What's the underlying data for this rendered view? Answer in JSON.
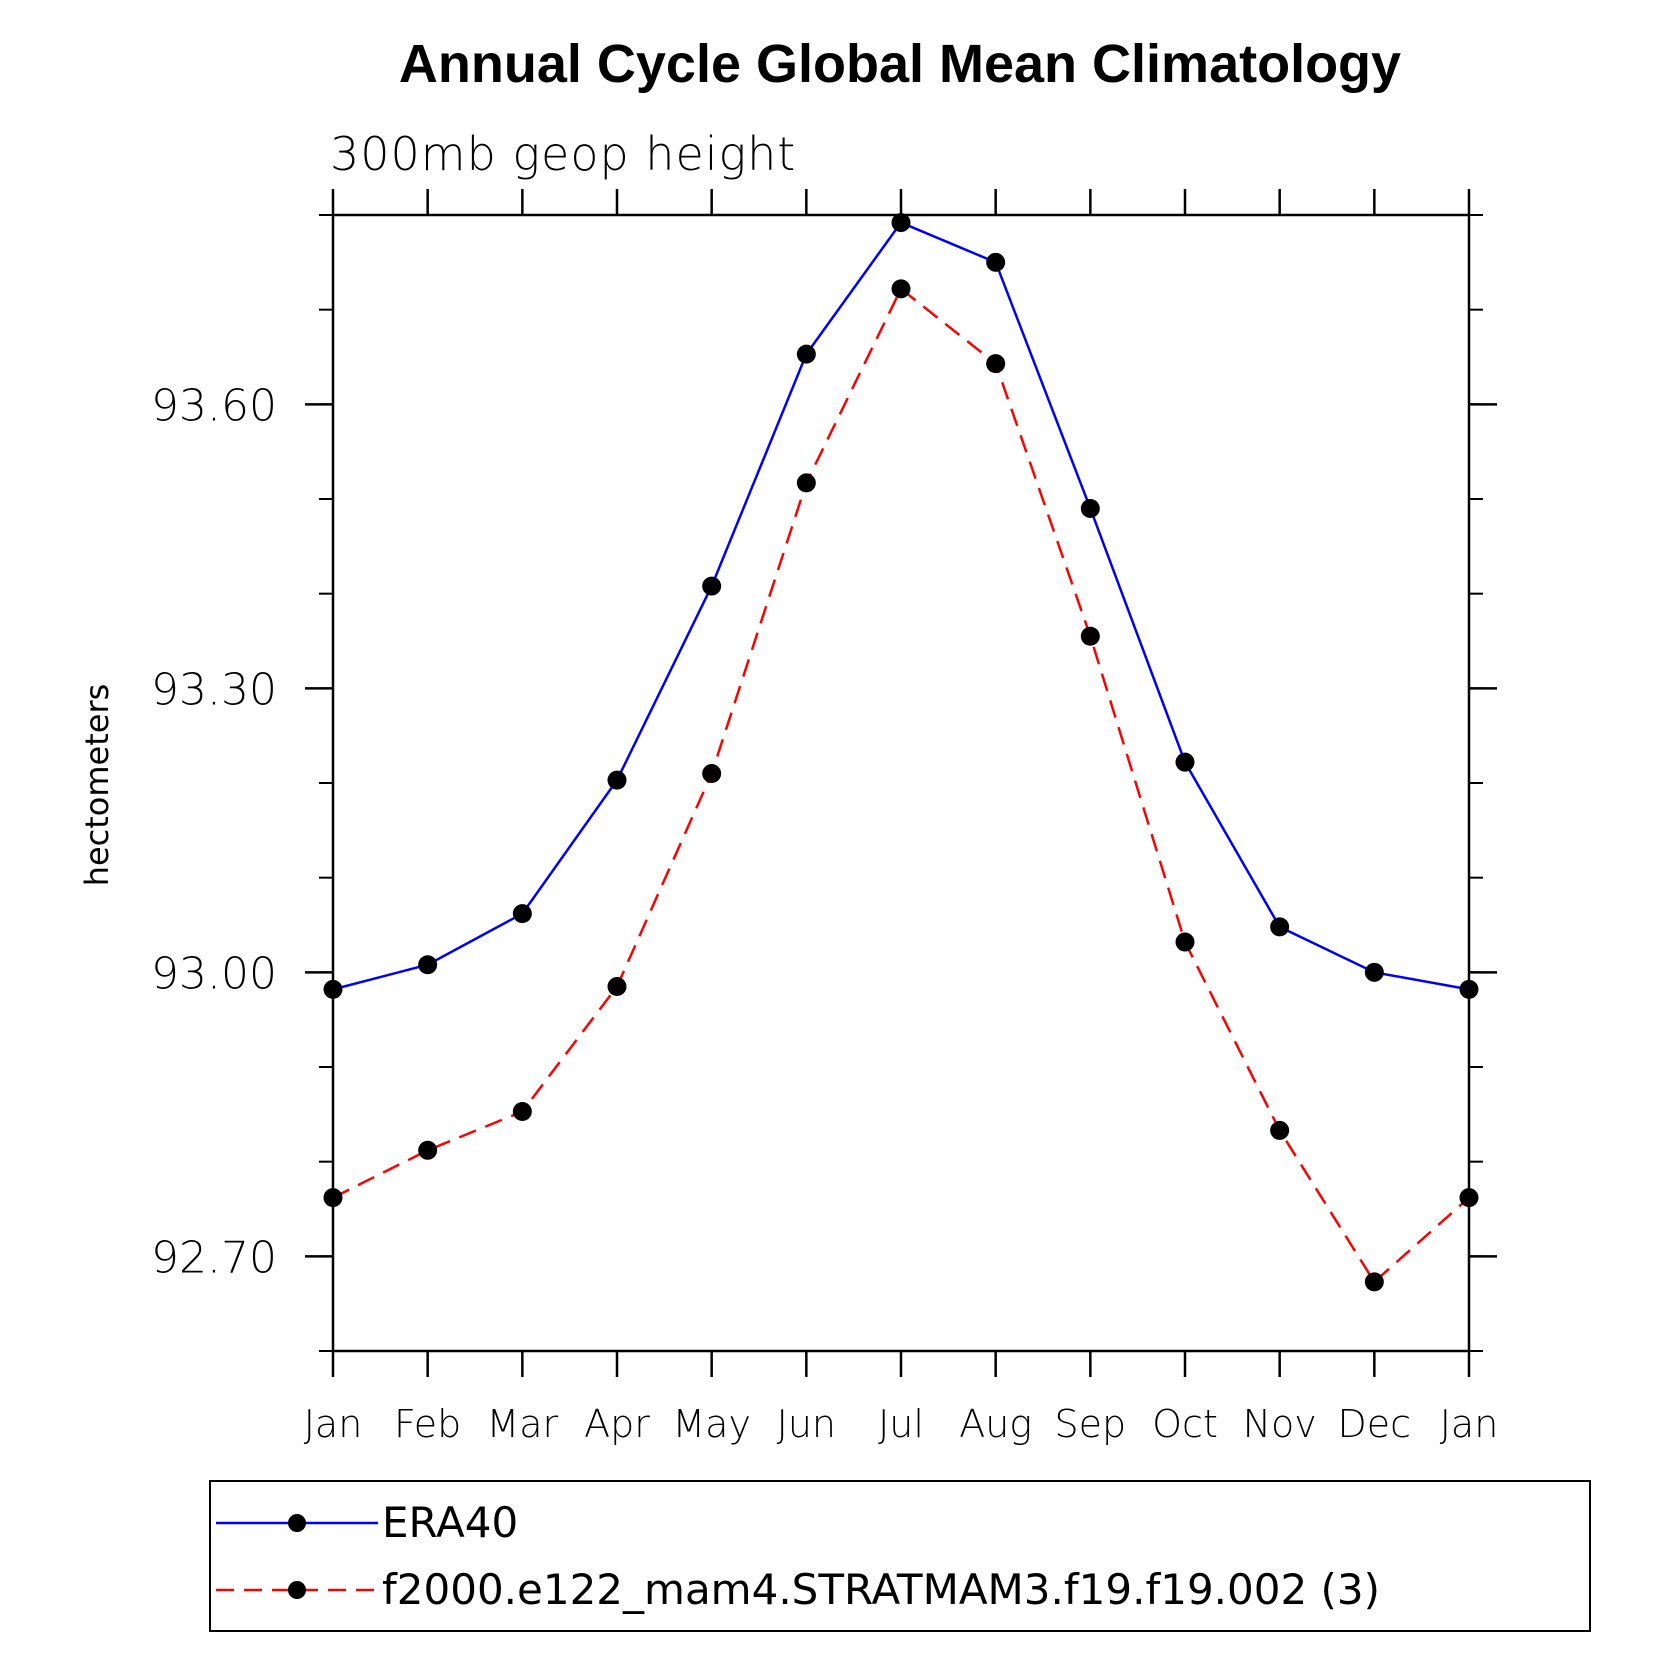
{
  "chart_data": {
    "type": "line",
    "title": "Annual Cycle Global Mean Climatology",
    "subtitle": "300mb geop height",
    "xlabel": "",
    "ylabel": "hectometers",
    "categories": [
      "Jan",
      "Feb",
      "Mar",
      "Apr",
      "May",
      "Jun",
      "Jul",
      "Aug",
      "Sep",
      "Oct",
      "Nov",
      "Dec",
      "Jan"
    ],
    "ylim": [
      92.6,
      93.8
    ],
    "yticks": [
      92.7,
      93.0,
      93.3,
      93.6
    ],
    "ytick_labels": [
      "92.70",
      "93.00",
      "93.30",
      "93.60"
    ],
    "grid": false,
    "legend_position": "bottom",
    "series": [
      {
        "name": "ERA40",
        "color": "#0000ff",
        "dash": "solid",
        "marker": "filled-circle",
        "values": [
          92.982,
          93.008,
          93.062,
          93.203,
          93.408,
          93.653,
          93.792,
          93.75,
          93.49,
          93.222,
          93.048,
          93.0,
          92.982
        ]
      },
      {
        "name": "f2000.e122_mam4.STRATMAM3.f19.f19.002 (3)",
        "color": "#ff0000",
        "dash": "dashed",
        "marker": "filled-circle",
        "values": [
          92.762,
          92.812,
          92.853,
          92.985,
          93.21,
          93.517,
          93.722,
          93.643,
          93.355,
          93.032,
          92.833,
          92.673,
          92.762
        ]
      }
    ]
  }
}
